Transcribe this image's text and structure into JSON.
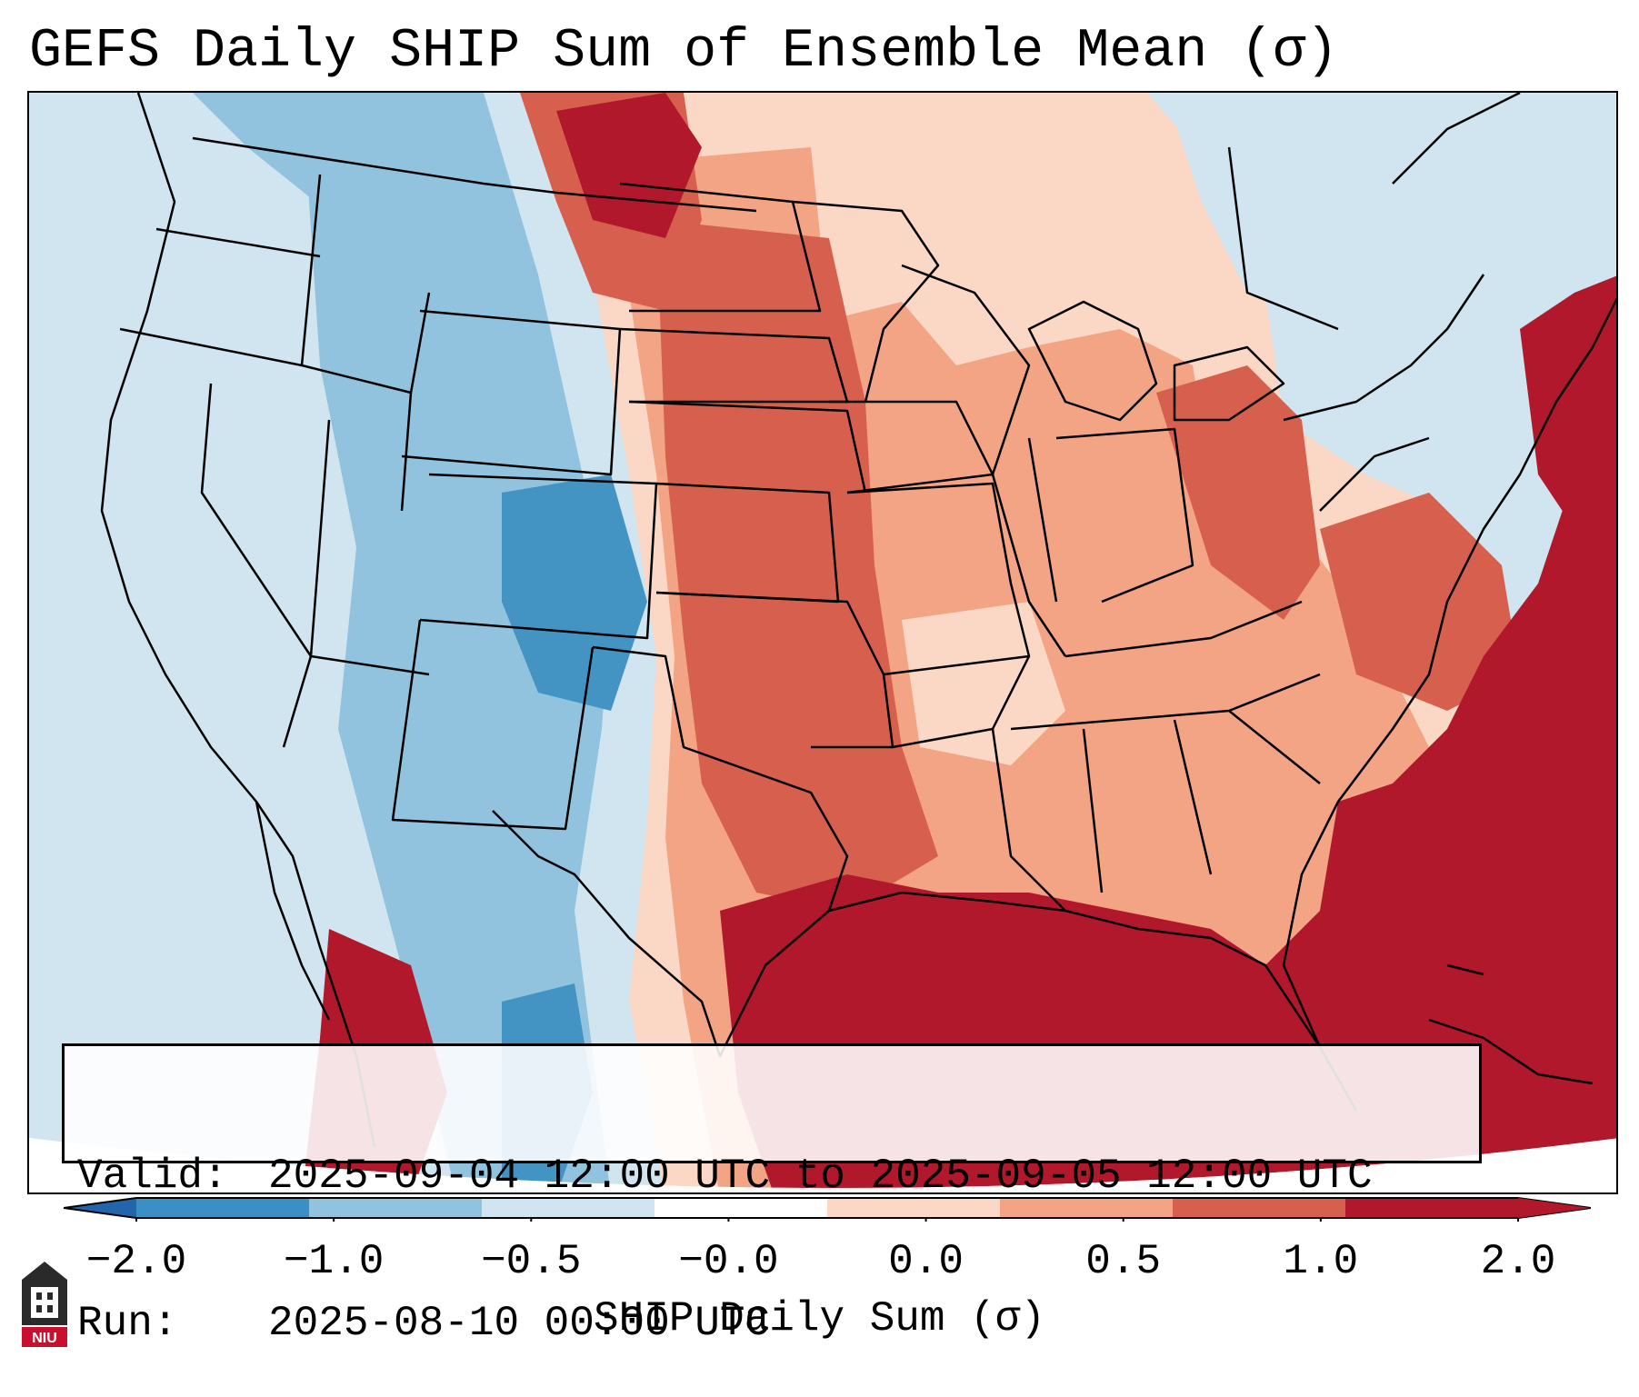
{
  "title": "GEFS Daily SHIP Sum of Ensemble Mean (σ)",
  "info": {
    "valid_label": "Valid:",
    "valid_value": "2025-09-04 12:00 UTC to 2025-09-05 12:00 UTC",
    "run_label": "Run:",
    "run_value": "2025-08-10 00:00 UTC"
  },
  "colorbar": {
    "label": "SHIP Daily Sum (σ)",
    "ticks": [
      "−2.0",
      "−1.0",
      "−0.5",
      "−0.0",
      "0.0",
      "0.5",
      "1.0",
      "2.0"
    ],
    "colors": [
      "#3a8fc4",
      "#92c3de",
      "#d1e5f0",
      "#ffffff",
      "#fbd8c5",
      "#f2a485",
      "#d6604d",
      "#b2182b"
    ],
    "under_color": "#2166ac",
    "over_color": "#b2182b"
  },
  "map": {
    "ocean_fill": "#d3e6f1",
    "land_outline_color": "#000000"
  },
  "logo": {
    "text": "NIU",
    "color": "#c8102e"
  }
}
